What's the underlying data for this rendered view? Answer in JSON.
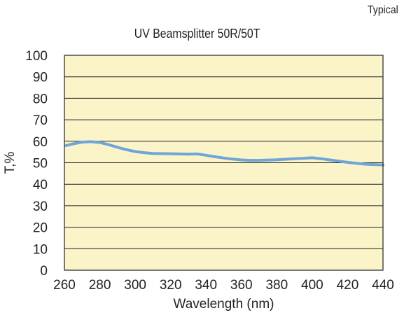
{
  "corner_note": "Typical",
  "chart_data": {
    "type": "line",
    "title": "UV Beamsplitter 50R/50T",
    "xlabel": "Wavelength (nm)",
    "ylabel": "T,%",
    "xlim": [
      260,
      440
    ],
    "ylim": [
      0,
      100
    ],
    "x_ticks": [
      260,
      280,
      300,
      320,
      340,
      360,
      380,
      400,
      420,
      440
    ],
    "y_ticks": [
      0,
      10,
      20,
      30,
      40,
      50,
      60,
      70,
      80,
      90,
      100
    ],
    "grid": "horizontal",
    "colors": {
      "plot_background": "#fbf4c8",
      "line": "#6fa5d7",
      "grid": "#222222"
    },
    "series": [
      {
        "x": [
          261,
          265,
          270,
          275,
          280,
          285,
          290,
          295,
          300,
          305,
          310,
          320,
          330,
          335,
          340,
          345,
          350,
          355,
          360,
          365,
          370,
          380,
          390,
          395,
          400,
          405,
          410,
          420,
          430,
          440
        ],
        "values": [
          58.0,
          58.8,
          59.6,
          59.8,
          59.4,
          58.4,
          57.2,
          56.1,
          55.2,
          54.7,
          54.3,
          54.2,
          54.0,
          54.1,
          53.5,
          52.8,
          52.2,
          51.7,
          51.3,
          51.1,
          51.1,
          51.4,
          51.9,
          52.1,
          52.3,
          51.9,
          51.3,
          50.2,
          49.3,
          49.0
        ]
      }
    ]
  }
}
